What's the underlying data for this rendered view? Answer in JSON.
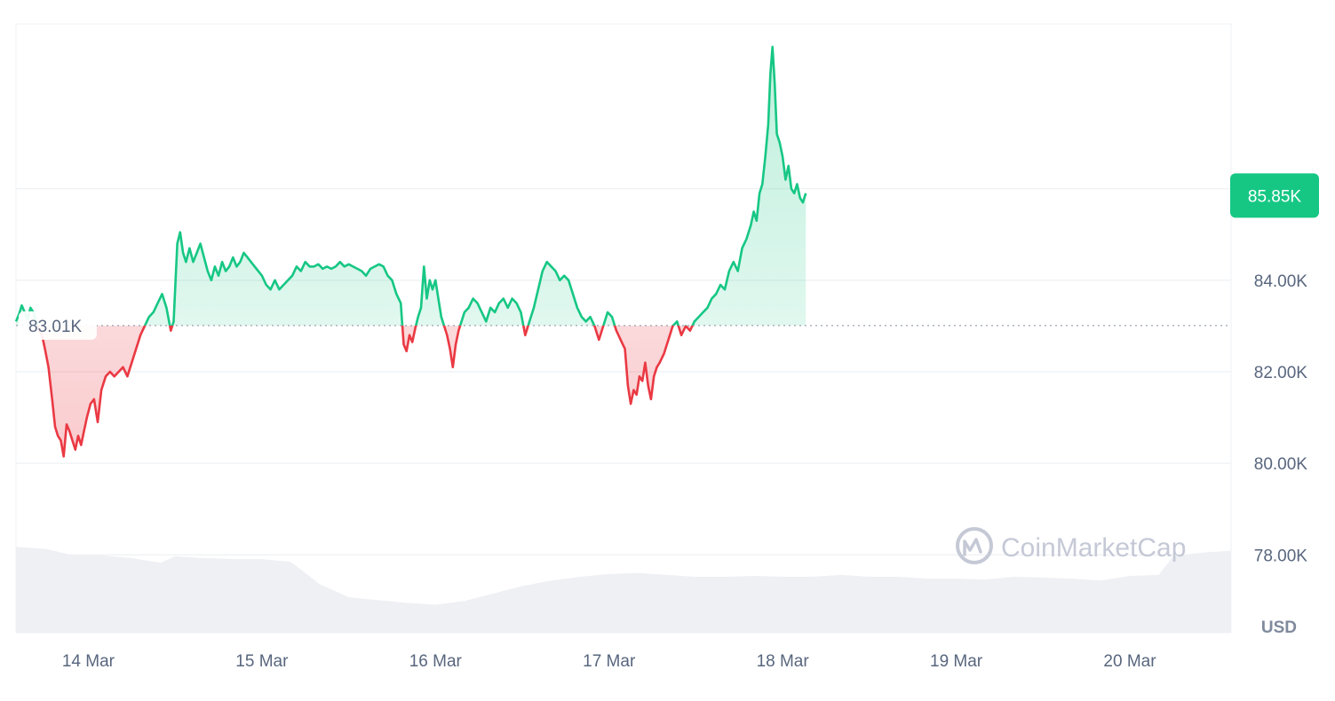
{
  "chart_data": {
    "type": "area",
    "subtype": "baseline-price-with-volume",
    "unit": "USD",
    "y_ticks": [
      "78.00K",
      "80.00K",
      "82.00K",
      "84.00K"
    ],
    "y_tick_values": [
      78000,
      80000,
      82000,
      84000
    ],
    "ylim": [
      76300,
      89600
    ],
    "x_ticks": [
      "14 Mar",
      "15 Mar",
      "16 Mar",
      "17 Mar",
      "18 Mar",
      "19 Mar",
      "20 Mar"
    ],
    "x_tick_hours": [
      0,
      24,
      48,
      72,
      96,
      120,
      144
    ],
    "xlim_hours": [
      -10,
      158
    ],
    "baseline_value": 83010,
    "baseline_label": "83.01K",
    "current_value": 85850,
    "current_label": "85.85K",
    "colors": {
      "up": "#16c784",
      "down": "#ea3943",
      "up_fill": "#16c784",
      "down_fill": "#ea3943",
      "volume": "#eff0f4",
      "grid": "#eef0f3"
    },
    "watermark": "CoinMarketCap",
    "price_points": [
      [
        -10.0,
        83100
      ],
      [
        -9.6,
        83250
      ],
      [
        -9.2,
        83450
      ],
      [
        -8.8,
        83300
      ],
      [
        -8.4,
        83150
      ],
      [
        -8.0,
        83400
      ],
      [
        -7.6,
        83300
      ],
      [
        -7.2,
        83100
      ],
      [
        -6.8,
        82900
      ],
      [
        -6.4,
        82800
      ],
      [
        -6.0,
        82500
      ],
      [
        -5.5,
        82100
      ],
      [
        -5.0,
        81400
      ],
      [
        -4.6,
        80800
      ],
      [
        -4.2,
        80600
      ],
      [
        -3.8,
        80500
      ],
      [
        -3.4,
        80150
      ],
      [
        -3.0,
        80850
      ],
      [
        -2.6,
        80700
      ],
      [
        -2.2,
        80500
      ],
      [
        -1.8,
        80300
      ],
      [
        -1.4,
        80600
      ],
      [
        -1.0,
        80400
      ],
      [
        -0.6,
        80700
      ],
      [
        -0.2,
        81000
      ],
      [
        0.3,
        81300
      ],
      [
        0.8,
        81400
      ],
      [
        1.3,
        80900
      ],
      [
        1.8,
        81600
      ],
      [
        2.4,
        81900
      ],
      [
        3.0,
        82000
      ],
      [
        3.6,
        81900
      ],
      [
        4.2,
        82000
      ],
      [
        4.8,
        82100
      ],
      [
        5.4,
        81900
      ],
      [
        6.0,
        82200
      ],
      [
        6.6,
        82500
      ],
      [
        7.2,
        82800
      ],
      [
        7.8,
        83000
      ],
      [
        8.4,
        83200
      ],
      [
        9.0,
        83300
      ],
      [
        9.6,
        83500
      ],
      [
        10.2,
        83700
      ],
      [
        10.8,
        83400
      ],
      [
        11.4,
        82900
      ],
      [
        11.8,
        83100
      ],
      [
        12.3,
        84800
      ],
      [
        12.7,
        85050
      ],
      [
        13.1,
        84600
      ],
      [
        13.5,
        84400
      ],
      [
        14.0,
        84700
      ],
      [
        14.5,
        84400
      ],
      [
        15.0,
        84600
      ],
      [
        15.5,
        84800
      ],
      [
        16.0,
        84500
      ],
      [
        16.5,
        84200
      ],
      [
        17.0,
        84000
      ],
      [
        17.5,
        84300
      ],
      [
        18.0,
        84100
      ],
      [
        18.5,
        84400
      ],
      [
        19.0,
        84200
      ],
      [
        19.5,
        84300
      ],
      [
        20.0,
        84500
      ],
      [
        20.5,
        84300
      ],
      [
        21.0,
        84400
      ],
      [
        21.5,
        84600
      ],
      [
        22.0,
        84500
      ],
      [
        22.5,
        84400
      ],
      [
        23.0,
        84300
      ],
      [
        23.5,
        84200
      ],
      [
        24.0,
        84100
      ],
      [
        24.6,
        83900
      ],
      [
        25.2,
        83800
      ],
      [
        25.8,
        84000
      ],
      [
        26.4,
        83800
      ],
      [
        27.0,
        83900
      ],
      [
        27.6,
        84000
      ],
      [
        28.2,
        84100
      ],
      [
        28.8,
        84300
      ],
      [
        29.4,
        84200
      ],
      [
        30.0,
        84400
      ],
      [
        30.6,
        84300
      ],
      [
        31.2,
        84300
      ],
      [
        31.8,
        84350
      ],
      [
        32.4,
        84250
      ],
      [
        33.0,
        84300
      ],
      [
        33.6,
        84250
      ],
      [
        34.2,
        84300
      ],
      [
        34.8,
        84400
      ],
      [
        35.4,
        84300
      ],
      [
        36.0,
        84350
      ],
      [
        36.6,
        84300
      ],
      [
        37.2,
        84250
      ],
      [
        37.8,
        84200
      ],
      [
        38.4,
        84100
      ],
      [
        39.0,
        84250
      ],
      [
        39.6,
        84300
      ],
      [
        40.2,
        84350
      ],
      [
        40.8,
        84300
      ],
      [
        41.4,
        84100
      ],
      [
        42.0,
        84000
      ],
      [
        42.6,
        83700
      ],
      [
        43.2,
        83500
      ],
      [
        43.6,
        82600
      ],
      [
        44.0,
        82450
      ],
      [
        44.4,
        82800
      ],
      [
        44.8,
        82650
      ],
      [
        45.2,
        82950
      ],
      [
        45.6,
        83200
      ],
      [
        46.0,
        83400
      ],
      [
        46.4,
        84300
      ],
      [
        46.8,
        83600
      ],
      [
        47.2,
        84000
      ],
      [
        47.6,
        83800
      ],
      [
        48.0,
        84000
      ],
      [
        48.4,
        83600
      ],
      [
        48.8,
        83200
      ],
      [
        49.2,
        83000
      ],
      [
        49.6,
        82800
      ],
      [
        50.0,
        82500
      ],
      [
        50.4,
        82100
      ],
      [
        50.8,
        82600
      ],
      [
        51.2,
        82900
      ],
      [
        51.6,
        83100
      ],
      [
        52.0,
        83300
      ],
      [
        52.6,
        83400
      ],
      [
        53.2,
        83600
      ],
      [
        53.8,
        83500
      ],
      [
        54.4,
        83300
      ],
      [
        55.0,
        83100
      ],
      [
        55.6,
        83400
      ],
      [
        56.2,
        83300
      ],
      [
        56.8,
        83500
      ],
      [
        57.4,
        83600
      ],
      [
        58.0,
        83400
      ],
      [
        58.6,
        83600
      ],
      [
        59.2,
        83500
      ],
      [
        59.8,
        83300
      ],
      [
        60.4,
        82800
      ],
      [
        61.0,
        83100
      ],
      [
        61.6,
        83400
      ],
      [
        62.2,
        83800
      ],
      [
        62.8,
        84200
      ],
      [
        63.4,
        84400
      ],
      [
        64.0,
        84300
      ],
      [
        64.6,
        84200
      ],
      [
        65.2,
        84000
      ],
      [
        65.8,
        84100
      ],
      [
        66.4,
        84000
      ],
      [
        67.0,
        83700
      ],
      [
        67.6,
        83400
      ],
      [
        68.2,
        83200
      ],
      [
        68.8,
        83100
      ],
      [
        69.4,
        83200
      ],
      [
        70.0,
        83000
      ],
      [
        70.6,
        82700
      ],
      [
        71.2,
        83000
      ],
      [
        71.8,
        83300
      ],
      [
        72.4,
        83200
      ],
      [
        73.0,
        82900
      ],
      [
        73.6,
        82700
      ],
      [
        74.2,
        82500
      ],
      [
        74.6,
        81700
      ],
      [
        75.0,
        81300
      ],
      [
        75.4,
        81600
      ],
      [
        75.8,
        81500
      ],
      [
        76.2,
        81900
      ],
      [
        76.6,
        81800
      ],
      [
        77.0,
        82200
      ],
      [
        77.4,
        81700
      ],
      [
        77.8,
        81400
      ],
      [
        78.2,
        81900
      ],
      [
        78.6,
        82100
      ],
      [
        79.0,
        82200
      ],
      [
        79.6,
        82400
      ],
      [
        80.2,
        82700
      ],
      [
        80.8,
        83000
      ],
      [
        81.4,
        83100
      ],
      [
        82.0,
        82800
      ],
      [
        82.6,
        83000
      ],
      [
        83.2,
        82900
      ],
      [
        83.8,
        83100
      ],
      [
        84.4,
        83200
      ],
      [
        85.0,
        83300
      ],
      [
        85.6,
        83400
      ],
      [
        86.2,
        83600
      ],
      [
        86.8,
        83700
      ],
      [
        87.4,
        83900
      ],
      [
        88.0,
        83800
      ],
      [
        88.6,
        84200
      ],
      [
        89.2,
        84400
      ],
      [
        89.8,
        84200
      ],
      [
        90.4,
        84700
      ],
      [
        91.0,
        84900
      ],
      [
        91.6,
        85200
      ],
      [
        92.0,
        85500
      ],
      [
        92.4,
        85300
      ],
      [
        92.8,
        85900
      ],
      [
        93.2,
        86100
      ],
      [
        93.6,
        86700
      ],
      [
        94.0,
        87400
      ],
      [
        94.3,
        88500
      ],
      [
        94.6,
        89100
      ],
      [
        94.9,
        88300
      ],
      [
        95.2,
        87200
      ],
      [
        95.6,
        87000
      ],
      [
        96.0,
        86700
      ],
      [
        96.4,
        86200
      ],
      [
        96.8,
        86500
      ],
      [
        97.2,
        86000
      ],
      [
        97.6,
        85900
      ],
      [
        98.0,
        86100
      ],
      [
        98.4,
        85800
      ],
      [
        98.8,
        85700
      ],
      [
        99.2,
        85900
      ]
    ],
    "volume_points": [
      [
        -10.0,
        0.92
      ],
      [
        -6.0,
        0.9
      ],
      [
        -2.0,
        0.83
      ],
      [
        2.0,
        0.83
      ],
      [
        6.0,
        0.8
      ],
      [
        10.0,
        0.75
      ],
      [
        12.0,
        0.82
      ],
      [
        16.0,
        0.8
      ],
      [
        20.0,
        0.79
      ],
      [
        24.0,
        0.79
      ],
      [
        28.0,
        0.76
      ],
      [
        32.0,
        0.52
      ],
      [
        36.0,
        0.38
      ],
      [
        40.0,
        0.35
      ],
      [
        44.0,
        0.32
      ],
      [
        48.0,
        0.3
      ],
      [
        52.0,
        0.34
      ],
      [
        56.0,
        0.42
      ],
      [
        60.0,
        0.5
      ],
      [
        64.0,
        0.56
      ],
      [
        68.0,
        0.6
      ],
      [
        72.0,
        0.63
      ],
      [
        76.0,
        0.64
      ],
      [
        80.0,
        0.62
      ],
      [
        84.0,
        0.6
      ],
      [
        88.0,
        0.6
      ],
      [
        92.0,
        0.61
      ],
      [
        96.0,
        0.6
      ],
      [
        100.0,
        0.6
      ],
      [
        104.0,
        0.62
      ],
      [
        108.0,
        0.6
      ],
      [
        112.0,
        0.6
      ],
      [
        116.0,
        0.58
      ],
      [
        120.0,
        0.58
      ],
      [
        124.0,
        0.57
      ],
      [
        128.0,
        0.6
      ],
      [
        132.0,
        0.59
      ],
      [
        136.0,
        0.58
      ],
      [
        140.0,
        0.56
      ],
      [
        144.0,
        0.61
      ],
      [
        148.0,
        0.62
      ],
      [
        150.0,
        0.82
      ],
      [
        154.0,
        0.86
      ],
      [
        158.0,
        0.88
      ]
    ]
  }
}
